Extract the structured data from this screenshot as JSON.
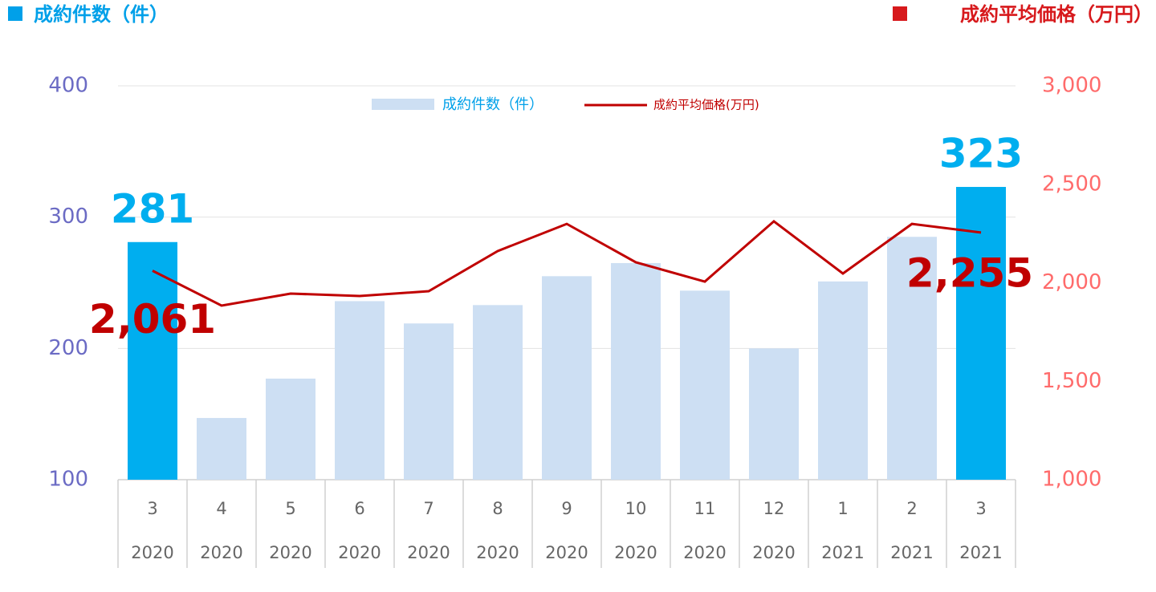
{
  "chart_data": {
    "type": "bar_line",
    "y_label": "成約件数（件）",
    "y2_label": "成約平均価格（万円）",
    "categories": [
      "3",
      "4",
      "5",
      "6",
      "7",
      "8",
      "9",
      "10",
      "11",
      "12",
      "1",
      "2",
      "3"
    ],
    "category_groups": [
      "2020",
      "2020",
      "2020",
      "2020",
      "2020",
      "2020",
      "2020",
      "2020",
      "2020",
      "2020",
      "2021",
      "2021",
      "2021"
    ],
    "series": [
      {
        "name": "成約件数（件）",
        "type": "bar",
        "color": "#cddff3",
        "highlight_color": "#00aeef",
        "highlight": [
          true,
          false,
          false,
          false,
          false,
          false,
          false,
          false,
          false,
          false,
          false,
          false,
          true
        ],
        "values": [
          281,
          147,
          177,
          236,
          219,
          233,
          255,
          265,
          244,
          200,
          251,
          285,
          323
        ],
        "value_labels": [
          "281",
          null,
          null,
          null,
          null,
          null,
          null,
          null,
          null,
          null,
          null,
          null,
          "323"
        ]
      },
      {
        "name": "成約平均価格(万円)",
        "type": "line",
        "axis": "y2",
        "color": "#c00000",
        "values": [
          2061,
          1884,
          1945,
          1933,
          1957,
          2161,
          2299,
          2104,
          2006,
          2312,
          2047,
          2299,
          2255
        ],
        "value_labels": [
          "2,061",
          null,
          null,
          null,
          null,
          null,
          null,
          null,
          null,
          null,
          null,
          null,
          "2,255"
        ]
      }
    ],
    "ylim": [
      100,
      400
    ],
    "yticks": [
      100,
      200,
      300,
      400
    ],
    "y2lim": [
      1000,
      3000
    ],
    "y2ticks": [
      {
        "value": 1000,
        "label": "1,000"
      },
      {
        "value": 1500,
        "label": "1,500"
      },
      {
        "value": 2000,
        "label": "2,000"
      },
      {
        "value": 2500,
        "label": "2,500"
      },
      {
        "value": 3000,
        "label": "3,000"
      }
    ],
    "grid": true,
    "legend": "top"
  }
}
